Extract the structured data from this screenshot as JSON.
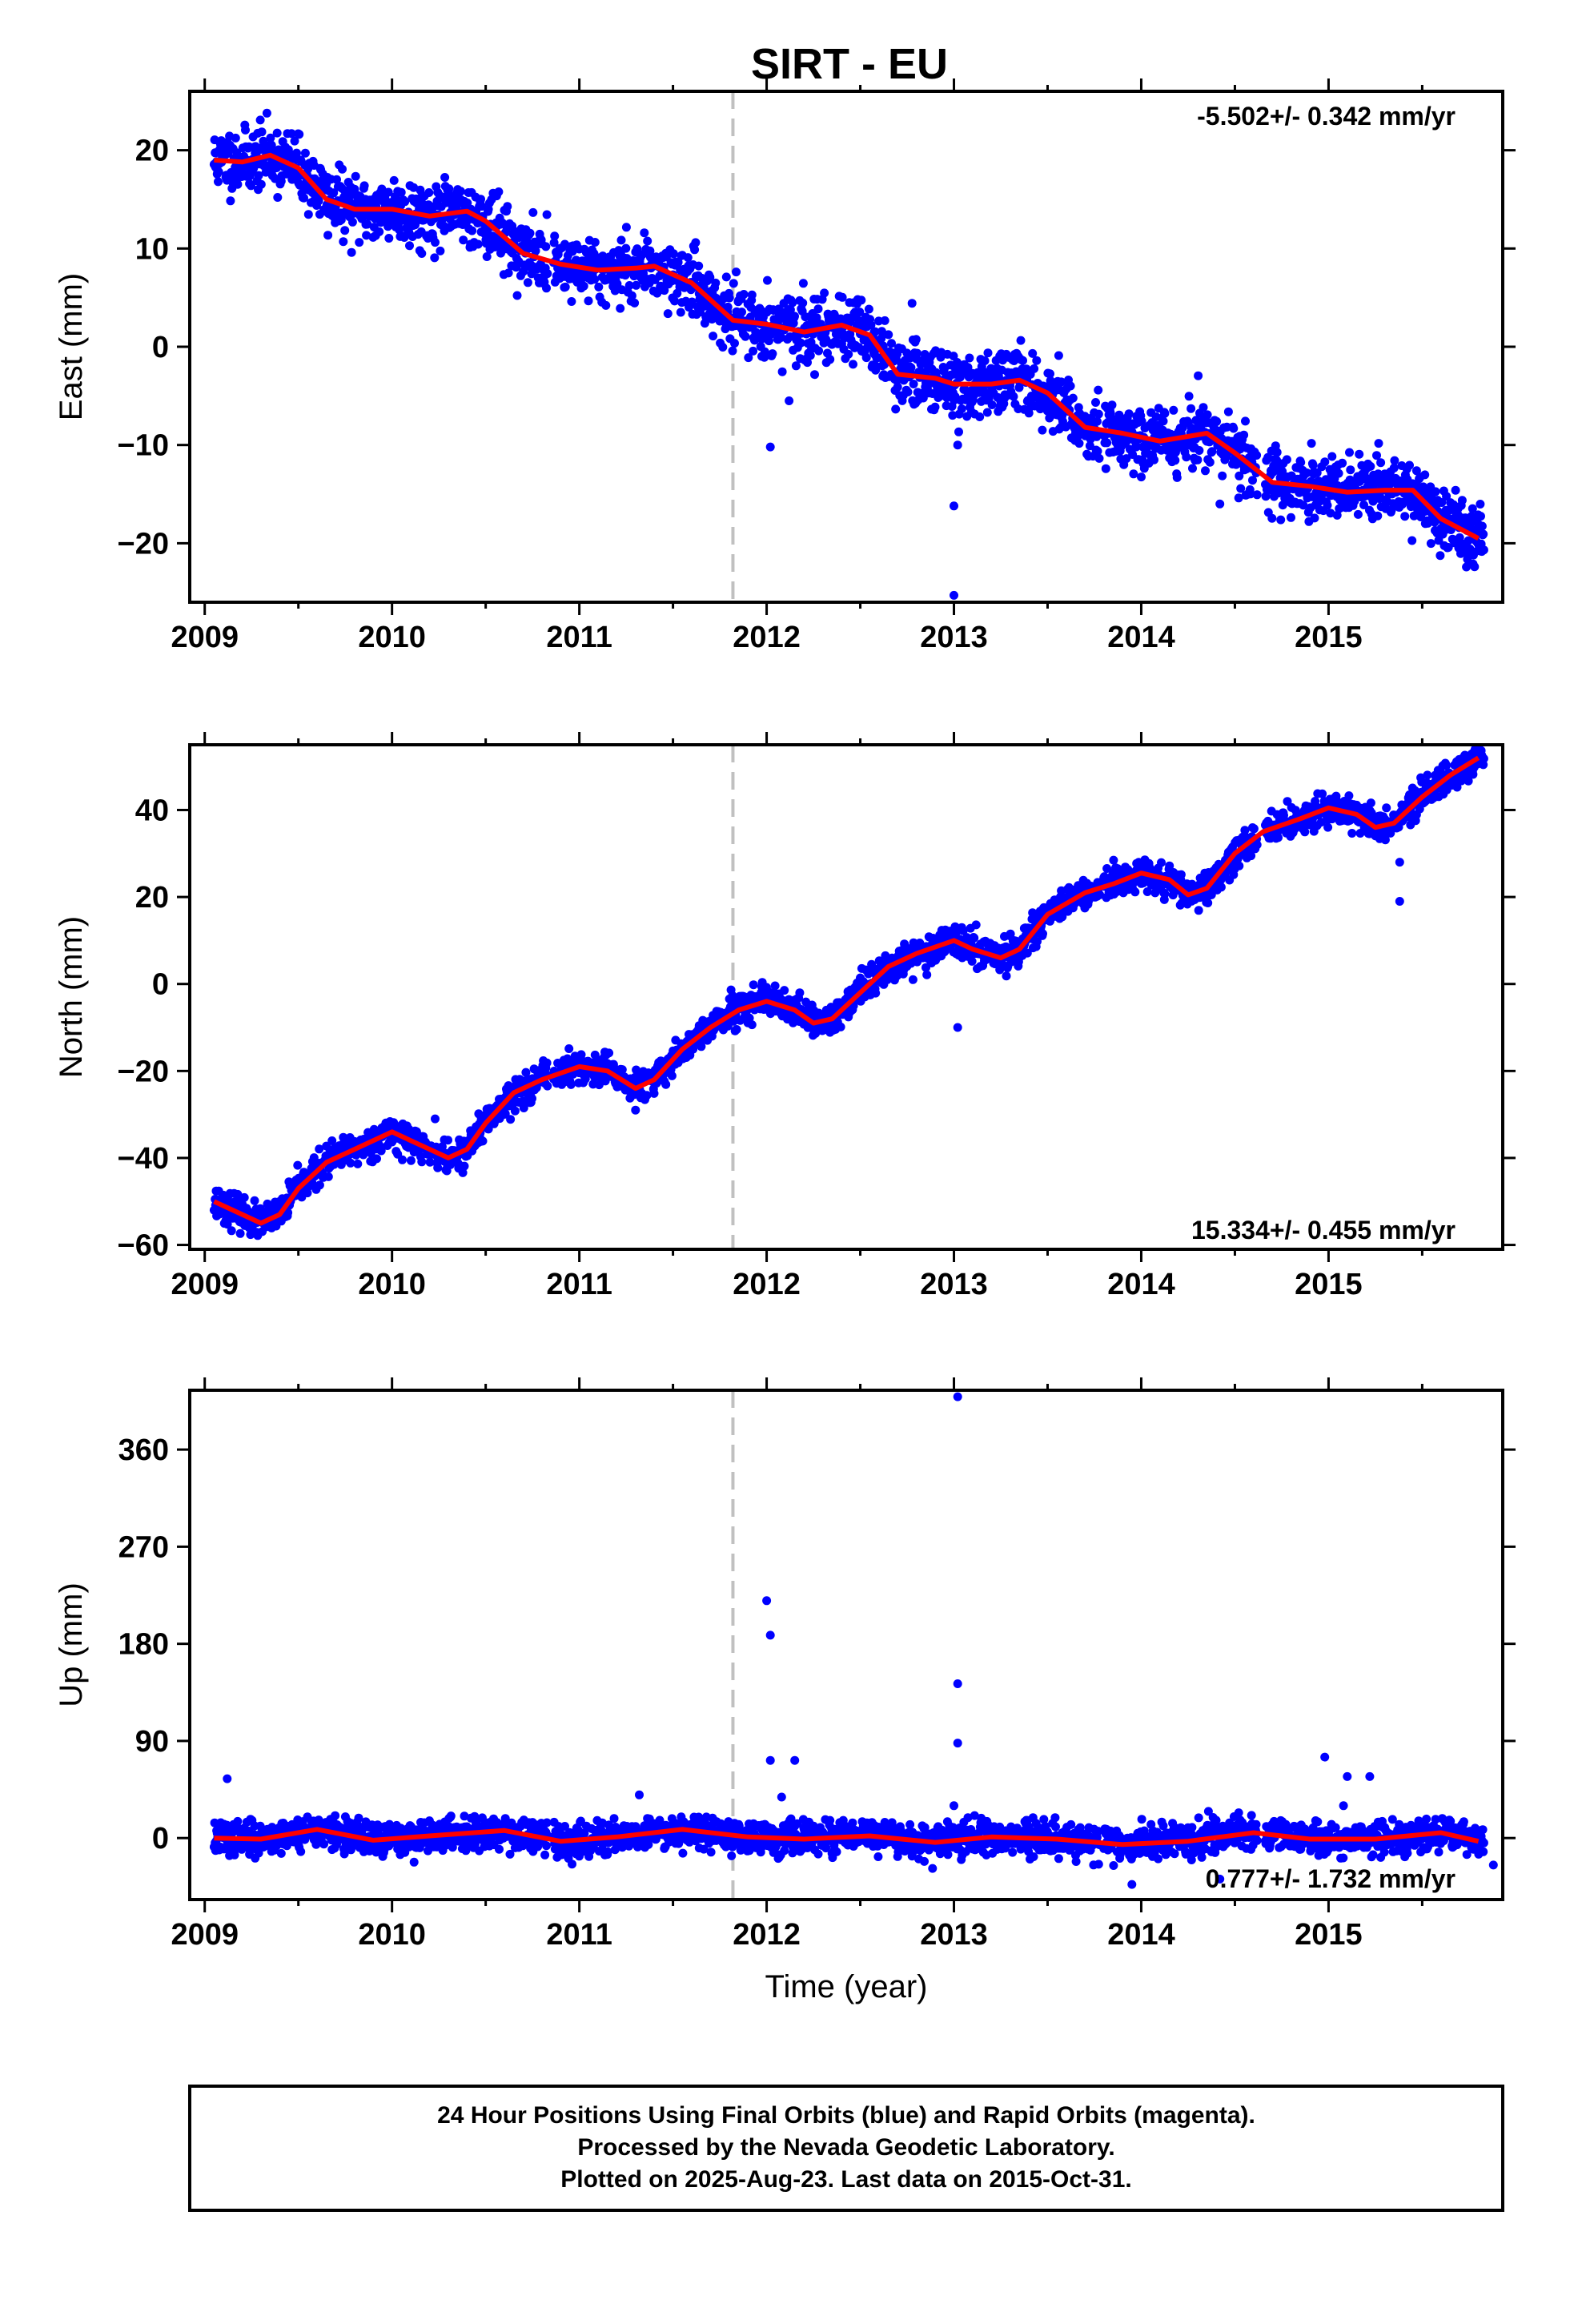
{
  "colors": {
    "final_orbits": "#0000ff",
    "model_fit": "#ff0000",
    "marker_line": "#c0c0c0",
    "frame": "#000000"
  },
  "chart_data": [
    {
      "type": "scatter",
      "panel": "east",
      "title": "SIRT - EU",
      "xlabel": "",
      "ylabel": "East (mm)",
      "xlim": [
        2008.92,
        2015.93
      ],
      "ylim": [
        -26,
        26
      ],
      "xticks": [
        "2009",
        "2010",
        "2011",
        "2012",
        "2013",
        "2014",
        "2015"
      ],
      "yticks": [
        "−20",
        "−10",
        "0",
        "10",
        "20"
      ],
      "ytick_values": [
        -20,
        -10,
        0,
        10,
        20
      ],
      "rate_text": "-5.502+/- 0.342 mm/yr",
      "rate_position": "top-right",
      "event_line_x": 2011.82,
      "fit_points": [
        [
          2009.05,
          19
        ],
        [
          2009.2,
          18.8
        ],
        [
          2009.35,
          19.5
        ],
        [
          2009.5,
          18.2
        ],
        [
          2009.65,
          15
        ],
        [
          2009.8,
          14
        ],
        [
          2010.0,
          14
        ],
        [
          2010.2,
          13.3
        ],
        [
          2010.4,
          13.8
        ],
        [
          2010.5,
          12.8
        ],
        [
          2010.7,
          9.5
        ],
        [
          2010.9,
          8.4
        ],
        [
          2011.1,
          7.8
        ],
        [
          2011.3,
          8.0
        ],
        [
          2011.4,
          8.2
        ],
        [
          2011.6,
          6.5
        ],
        [
          2011.82,
          2.7
        ],
        [
          2012.0,
          2.3
        ],
        [
          2012.2,
          1.5
        ],
        [
          2012.4,
          2.2
        ],
        [
          2012.55,
          1.2
        ],
        [
          2012.7,
          -2.8
        ],
        [
          2012.9,
          -3.2
        ],
        [
          2013.0,
          -3.8
        ],
        [
          2013.2,
          -3.8
        ],
        [
          2013.35,
          -3.4
        ],
        [
          2013.5,
          -4.7
        ],
        [
          2013.7,
          -8.2
        ],
        [
          2013.9,
          -8.8
        ],
        [
          2014.1,
          -9.6
        ],
        [
          2014.35,
          -8.8
        ],
        [
          2014.5,
          -10.8
        ],
        [
          2014.7,
          -13.8
        ],
        [
          2014.9,
          -14.2
        ],
        [
          2015.1,
          -14.8
        ],
        [
          2015.3,
          -14.6
        ],
        [
          2015.45,
          -14.6
        ],
        [
          2015.6,
          -17.5
        ],
        [
          2015.8,
          -19.5
        ]
      ],
      "outliers": [
        [
          2012.02,
          -10.2
        ],
        [
          2012.12,
          -5.5
        ],
        [
          2013.0,
          -16.2
        ],
        [
          2013.0,
          -25.3
        ],
        [
          2013.02,
          -10
        ],
        [
          2014.42,
          -16
        ]
      ]
    },
    {
      "type": "scatter",
      "panel": "north",
      "xlabel": "",
      "ylabel": "North (mm)",
      "xlim": [
        2008.92,
        2015.93
      ],
      "ylim": [
        -61,
        55
      ],
      "xticks": [
        "2009",
        "2010",
        "2011",
        "2012",
        "2013",
        "2014",
        "2015"
      ],
      "yticks": [
        "−60",
        "−40",
        "−20",
        "0",
        "20",
        "40"
      ],
      "ytick_values": [
        -60,
        -40,
        -20,
        0,
        20,
        40
      ],
      "rate_text": "15.334+/- 0.455 mm/yr",
      "rate_position": "bottom-right",
      "event_line_x": 2011.82,
      "fit_points": [
        [
          2009.05,
          -50
        ],
        [
          2009.15,
          -52
        ],
        [
          2009.3,
          -55
        ],
        [
          2009.4,
          -53
        ],
        [
          2009.5,
          -47
        ],
        [
          2009.65,
          -41
        ],
        [
          2009.8,
          -38
        ],
        [
          2010.0,
          -34
        ],
        [
          2010.15,
          -37
        ],
        [
          2010.3,
          -40
        ],
        [
          2010.4,
          -38
        ],
        [
          2010.5,
          -32
        ],
        [
          2010.65,
          -25
        ],
        [
          2010.8,
          -22
        ],
        [
          2011.0,
          -19
        ],
        [
          2011.15,
          -20
        ],
        [
          2011.3,
          -24
        ],
        [
          2011.4,
          -22
        ],
        [
          2011.55,
          -15
        ],
        [
          2011.7,
          -10
        ],
        [
          2011.85,
          -6
        ],
        [
          2012.0,
          -4
        ],
        [
          2012.15,
          -6
        ],
        [
          2012.25,
          -9
        ],
        [
          2012.35,
          -8
        ],
        [
          2012.5,
          -2
        ],
        [
          2012.65,
          4
        ],
        [
          2012.8,
          7
        ],
        [
          2013.0,
          10
        ],
        [
          2013.1,
          8
        ],
        [
          2013.25,
          6
        ],
        [
          2013.35,
          8
        ],
        [
          2013.5,
          16
        ],
        [
          2013.7,
          21
        ],
        [
          2013.85,
          23
        ],
        [
          2014.0,
          25.5
        ],
        [
          2014.15,
          24
        ],
        [
          2014.25,
          20.5
        ],
        [
          2014.35,
          22
        ],
        [
          2014.5,
          30
        ],
        [
          2014.65,
          35
        ],
        [
          2014.85,
          38
        ],
        [
          2015.0,
          40.5
        ],
        [
          2015.15,
          39
        ],
        [
          2015.25,
          36
        ],
        [
          2015.35,
          37
        ],
        [
          2015.5,
          43
        ],
        [
          2015.65,
          48
        ],
        [
          2015.8,
          52
        ]
      ],
      "outliers": [
        [
          2013.02,
          -10
        ],
        [
          2015.38,
          19
        ],
        [
          2015.38,
          28
        ],
        [
          2011.3,
          -29
        ],
        [
          2010.23,
          -31
        ]
      ]
    },
    {
      "type": "scatter",
      "panel": "up",
      "xlabel": "Time (year)",
      "ylabel": "Up (mm)",
      "xlim": [
        2008.92,
        2015.93
      ],
      "ylim": [
        -57,
        415
      ],
      "xticks": [
        "2009",
        "2010",
        "2011",
        "2012",
        "2013",
        "2014",
        "2015"
      ],
      "yticks": [
        "0",
        "90",
        "180",
        "270",
        "360"
      ],
      "ytick_values": [
        0,
        90,
        180,
        270,
        360
      ],
      "rate_text": "0.777+/- 1.732 mm/yr",
      "rate_position": "bottom-right",
      "event_line_x": 2011.82,
      "fit_points": [
        [
          2009.05,
          0
        ],
        [
          2009.3,
          -1
        ],
        [
          2009.6,
          8
        ],
        [
          2009.9,
          -2
        ],
        [
          2010.2,
          2
        ],
        [
          2010.6,
          7
        ],
        [
          2010.9,
          -3
        ],
        [
          2011.2,
          1
        ],
        [
          2011.55,
          8
        ],
        [
          2011.9,
          1
        ],
        [
          2012.2,
          -1
        ],
        [
          2012.55,
          2
        ],
        [
          2012.9,
          -4
        ],
        [
          2013.2,
          1
        ],
        [
          2013.55,
          -1
        ],
        [
          2013.9,
          -6
        ],
        [
          2014.25,
          -3
        ],
        [
          2014.6,
          5
        ],
        [
          2014.9,
          -1
        ],
        [
          2015.25,
          -1
        ],
        [
          2015.6,
          5
        ],
        [
          2015.8,
          -3
        ]
      ],
      "outliers": [
        [
          2012.0,
          220
        ],
        [
          2012.02,
          188
        ],
        [
          2012.02,
          72
        ],
        [
          2012.15,
          72
        ],
        [
          2013.02,
          409
        ],
        [
          2013.02,
          143
        ],
        [
          2013.02,
          88
        ],
        [
          2014.98,
          75
        ],
        [
          2015.1,
          57
        ],
        [
          2015.22,
          57
        ],
        [
          2009.12,
          55
        ],
        [
          2011.32,
          40
        ],
        [
          2012.08,
          38
        ],
        [
          2013.0,
          30
        ],
        [
          2015.08,
          30
        ],
        [
          2015.88,
          -25
        ],
        [
          2013.95,
          -43
        ],
        [
          2014.42,
          -38
        ]
      ]
    }
  ],
  "footer": {
    "line1": "24 Hour Positions Using Final Orbits (blue) and Rapid Orbits (magenta).",
    "line2": "Processed by the Nevada Geodetic Laboratory.",
    "line3": "Plotted on 2025-Aug-23. Last data on 2015-Oct-31."
  }
}
